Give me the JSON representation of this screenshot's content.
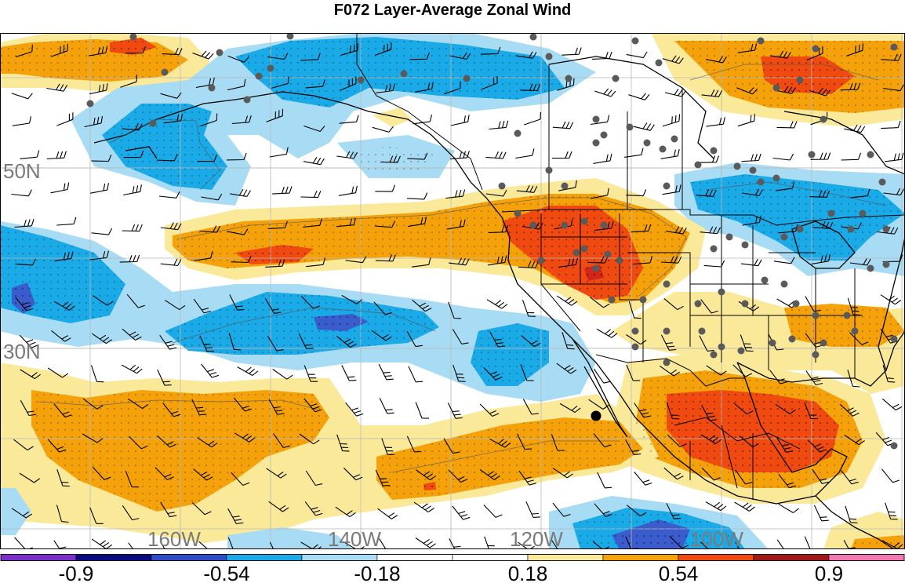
{
  "title": "F072 Layer-Average Zonal Wind",
  "map": {
    "lat_labels": [
      "50N",
      "30N"
    ],
    "lon_labels": [
      "160W",
      "140W",
      "120W",
      "100W"
    ]
  },
  "colorbar": {
    "colors": [
      "#7b2fc9",
      "#0a0a80",
      "#2e4cc8",
      "#1aaae8",
      "#a8dcf5",
      "#ffffff",
      "#ffffff",
      "#fbe99a",
      "#f5a20a",
      "#f04a10",
      "#a01818",
      "#f07ab0"
    ],
    "tick_labels": [
      "-0.9",
      "-0.54",
      "-0.18",
      "0.18",
      "0.54",
      "0.9"
    ]
  },
  "palette": {
    "pos_light": "#fbe99a",
    "pos_mid": "#f5a20a",
    "pos_strong": "#f04a10",
    "pos_max": "#d2261a",
    "neg_light": "#a8dcf5",
    "neg_mid": "#1aaae8",
    "neg_strong": "#3a5ccc"
  }
}
